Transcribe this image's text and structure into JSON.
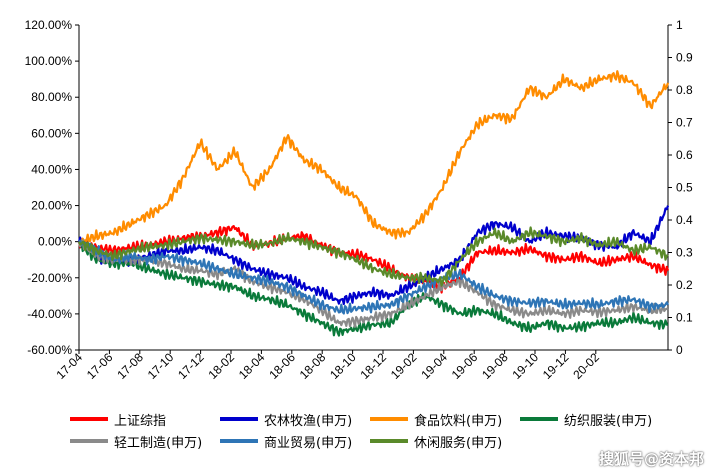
{
  "chart_data": {
    "type": "line",
    "x_tick_labels": [
      "17-04",
      "17-06",
      "17-08",
      "17-10",
      "17-12",
      "18-02",
      "18-04",
      "18-06",
      "18-08",
      "18-10",
      "18-12",
      "19-02",
      "19-04",
      "19-06",
      "19-08",
      "19-10",
      "19-12",
      "20-02"
    ],
    "y_left": {
      "range": [
        -60,
        120
      ],
      "tick_labels": [
        "-60.00%",
        "-40.00%",
        "-20.00%",
        "0.00%",
        "20.00%",
        "40.00%",
        "60.00%",
        "80.00%",
        "100.00%",
        "120.00%"
      ]
    },
    "y_right": {
      "range": [
        0,
        1
      ],
      "tick_labels": [
        "0",
        "0.1",
        "0.2",
        "0.3",
        "0.4",
        "0.5",
        "0.6",
        "0.7",
        "0.8",
        "0.9",
        "1"
      ]
    },
    "grid": false,
    "legend_position": "bottom",
    "series": [
      {
        "name": "上证综指",
        "color": "#ff0000",
        "values": [
          0,
          -3,
          -5,
          -3,
          -2,
          0,
          2,
          3,
          5,
          8,
          -2,
          -1,
          2,
          3,
          -2,
          -6,
          -7,
          -10,
          -15,
          -20,
          -22,
          -25,
          -20,
          -6,
          -5,
          -6,
          -4,
          -8,
          -10,
          -8,
          -12,
          -10,
          -8,
          -13,
          -16
        ]
      },
      {
        "name": "农林牧渔(申万)",
        "color": "#0000cc",
        "values": [
          0,
          -8,
          -12,
          -10,
          -8,
          -5,
          -5,
          -3,
          -5,
          -10,
          -15,
          -18,
          -20,
          -25,
          -28,
          -33,
          -30,
          -28,
          -30,
          -25,
          -20,
          -15,
          -10,
          5,
          10,
          8,
          0,
          5,
          3,
          2,
          -2,
          -3,
          5,
          0,
          20
        ]
      },
      {
        "name": "食品饮料(申万)",
        "color": "#ff8c00",
        "values": [
          0,
          3,
          5,
          10,
          15,
          20,
          35,
          55,
          40,
          50,
          30,
          40,
          58,
          45,
          40,
          30,
          25,
          10,
          5,
          5,
          15,
          30,
          50,
          65,
          70,
          68,
          85,
          80,
          90,
          85,
          90,
          92,
          88,
          75,
          88
        ]
      },
      {
        "name": "纺织服装(申万)",
        "color": "#0a7a3a",
        "values": [
          0,
          -10,
          -12,
          -12,
          -15,
          -18,
          -20,
          -22,
          -24,
          -25,
          -30,
          -32,
          -35,
          -40,
          -45,
          -50,
          -48,
          -46,
          -45,
          -35,
          -30,
          -35,
          -40,
          -38,
          -40,
          -45,
          -48,
          -45,
          -48,
          -47,
          -45,
          -45,
          -42,
          -45,
          -46
        ]
      },
      {
        "name": "轻工制造(申万)",
        "color": "#8a8a8a",
        "values": [
          0,
          -8,
          -10,
          -10,
          -10,
          -12,
          -15,
          -16,
          -18,
          -15,
          -22,
          -25,
          -28,
          -32,
          -38,
          -45,
          -44,
          -42,
          -40,
          -35,
          -30,
          -25,
          -22,
          -28,
          -35,
          -38,
          -40,
          -38,
          -40,
          -38,
          -39,
          -38,
          -36,
          -38,
          -37
        ]
      },
      {
        "name": "商业贸易(申万)",
        "color": "#2e75b6",
        "values": [
          0,
          -5,
          -10,
          -8,
          -10,
          -8,
          -10,
          -12,
          -15,
          -18,
          -20,
          -22,
          -25,
          -30,
          -35,
          -38,
          -37,
          -36,
          -35,
          -30,
          -25,
          -20,
          -18,
          -25,
          -30,
          -33,
          -34,
          -33,
          -35,
          -34,
          -35,
          -33,
          -32,
          -36,
          -35
        ]
      },
      {
        "name": "休闲服务(申万)",
        "color": "#5a8a2a",
        "values": [
          0,
          -5,
          -8,
          -5,
          -3,
          -2,
          0,
          2,
          1,
          0,
          -2,
          -1,
          2,
          0,
          -3,
          -6,
          -10,
          -15,
          -18,
          -20,
          -20,
          -22,
          -10,
          0,
          5,
          0,
          5,
          3,
          0,
          2,
          -2,
          0,
          -5,
          -3,
          -8
        ]
      }
    ]
  },
  "legend": {
    "row1": [
      "上证综指",
      "农林牧渔(申万)",
      "食品饮料(申万)",
      "纺织服装(申万)"
    ],
    "row2": [
      "轻工制造(申万)",
      "商业贸易(申万)",
      "休闲服务(申万)"
    ]
  },
  "watermark": "搜狐号@资本邦"
}
